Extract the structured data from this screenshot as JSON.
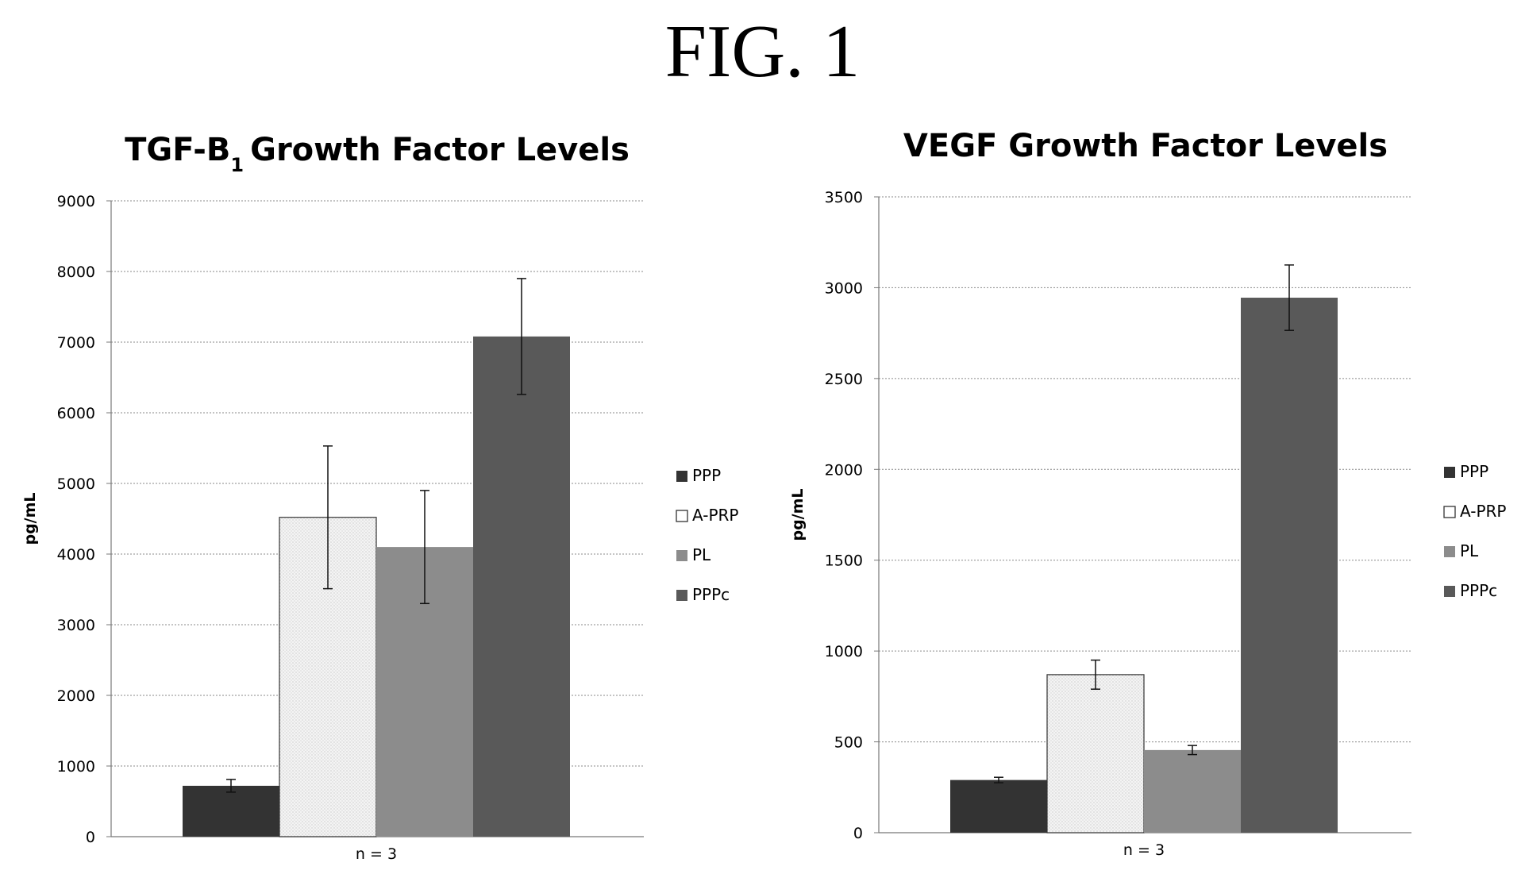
{
  "figure_title": "FIG. 1",
  "chart_data": [
    {
      "type": "bar",
      "title": "TGF-B",
      "title_subscript": "1",
      "title_suffix": "Growth Factor Levels",
      "xlabel": "",
      "ylabel": "pg/mL",
      "ylim": [
        0,
        9000
      ],
      "yticks": [
        0,
        1000,
        2000,
        3000,
        4000,
        5000,
        6000,
        7000,
        8000,
        9000
      ],
      "grid": true,
      "legend_position": "right",
      "categories": [
        "n = 3"
      ],
      "series": [
        {
          "name": "PPP",
          "values": [
            720
          ],
          "error": [
            90
          ],
          "color": "#333333"
        },
        {
          "name": "A-PRP",
          "values": [
            4520
          ],
          "error": [
            1010
          ],
          "color": "#f3f3f3"
        },
        {
          "name": "PL",
          "values": [
            4100
          ],
          "error": [
            800
          ],
          "color": "#8c8c8c"
        },
        {
          "name": "PPPc",
          "values": [
            7080
          ],
          "error": [
            820
          ],
          "color": "#595959"
        }
      ]
    },
    {
      "type": "bar",
      "title": "VEGF Growth Factor Levels",
      "title_subscript": "",
      "title_suffix": "",
      "xlabel": "",
      "ylabel": "pg/mL",
      "ylim": [
        0,
        3500
      ],
      "yticks": [
        0,
        500,
        1000,
        1500,
        2000,
        2500,
        3000,
        3500
      ],
      "grid": true,
      "legend_position": "right",
      "categories": [
        "n = 3"
      ],
      "series": [
        {
          "name": "PPP",
          "values": [
            290
          ],
          "error": [
            15
          ],
          "color": "#333333"
        },
        {
          "name": "A-PRP",
          "values": [
            870
          ],
          "error": [
            80
          ],
          "color": "#f3f3f3"
        },
        {
          "name": "PL",
          "values": [
            455
          ],
          "error": [
            25
          ],
          "color": "#8c8c8c"
        },
        {
          "name": "PPPc",
          "values": [
            2945
          ],
          "error": [
            180
          ],
          "color": "#595959"
        }
      ]
    }
  ]
}
